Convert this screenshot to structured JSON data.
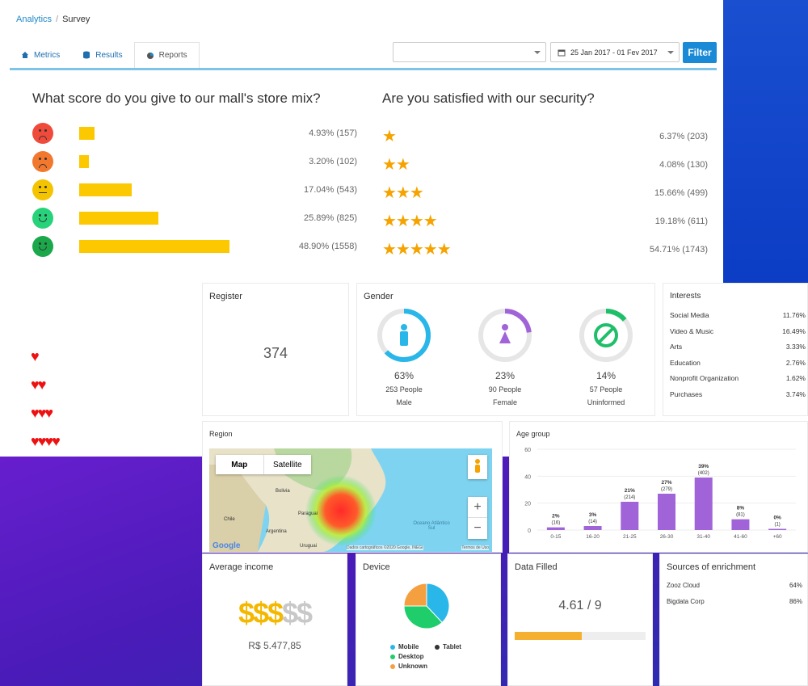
{
  "breadcrumb": {
    "root": "Analytics",
    "sep": "/",
    "current": "Survey"
  },
  "tabs": [
    {
      "label": "Metrics"
    },
    {
      "label": "Results"
    },
    {
      "label": "Reports"
    }
  ],
  "filter": {
    "select_value": "",
    "date_range": "25 Jan 2017 - 01 Fev 2017",
    "button_label": "Filter"
  },
  "q1": {
    "title": "What score do you give to our mall's store mix?",
    "rows": [
      {
        "pct": 4.93,
        "text": "4.93% (157)"
      },
      {
        "pct": 3.2,
        "text": "3.20% (102)"
      },
      {
        "pct": 17.04,
        "text": "17.04% (543)"
      },
      {
        "pct": 25.89,
        "text": "25.89% (825)"
      },
      {
        "pct": 48.9,
        "text": "48.90% (1558)"
      }
    ]
  },
  "q2": {
    "title": "Are you satisfied with our security?",
    "rows": [
      {
        "stars": 1,
        "text": "6.37% (203)"
      },
      {
        "stars": 2,
        "text": "4.08% (130)"
      },
      {
        "stars": 3,
        "text": "15.66% (499)"
      },
      {
        "stars": 4,
        "text": "19.18% (611)"
      },
      {
        "stars": 5,
        "text": "54.71% (1743)"
      }
    ]
  },
  "hearts": [
    1,
    2,
    3,
    4
  ],
  "register": {
    "title": "Register",
    "value": "374"
  },
  "gender": {
    "title": "Gender",
    "items": [
      {
        "pct": "63%",
        "people": "253 People",
        "label": "Male",
        "frac": 0.63,
        "color": "#29b6e8"
      },
      {
        "pct": "23%",
        "people": "90 People",
        "label": "Female",
        "frac": 0.23,
        "color": "#a064d8"
      },
      {
        "pct": "14%",
        "people": "57 People",
        "label": "Uninformed",
        "frac": 0.14,
        "color": "#1fbf6a"
      }
    ]
  },
  "interests": {
    "title": "Interests",
    "items": [
      {
        "label": "Social Media",
        "value": "11.76%"
      },
      {
        "label": "Video & Music",
        "value": "16.49%"
      },
      {
        "label": "Arts",
        "value": "3.33%"
      },
      {
        "label": "Education",
        "value": "2.76%"
      },
      {
        "label": "Nonprofit Organization",
        "value": "1.62%"
      },
      {
        "label": "Purchases",
        "value": "3.74%"
      }
    ]
  },
  "region": {
    "title": "Region",
    "map_tab": "Map",
    "satellite_tab": "Satellite",
    "zoom_in": "+",
    "zoom_out": "−",
    "labels": [
      "Bolivia",
      "Paraguai",
      "Oceano Atlântico Sul",
      "Chile",
      "Argentina",
      "Uruguai"
    ],
    "attribution": "Dados cartográficos ©2020 Google, INEGI",
    "terms": "Termos de Uso",
    "logo": "Google"
  },
  "age": {
    "title": "Age group"
  },
  "chart_data": {
    "type": "bar",
    "categories": [
      "0-15",
      "16-20",
      "21-25",
      "26-30",
      "31-40",
      "41-60",
      "+60"
    ],
    "values": [
      2,
      3,
      21,
      27,
      39,
      8,
      0
    ],
    "labels": [
      "2%",
      "3%",
      "21%",
      "27%",
      "39%",
      "8%",
      "0%"
    ],
    "counts": [
      "(16)",
      "(14)",
      "(214)",
      "(279)",
      "(402)",
      "(81)",
      "(1)"
    ],
    "ylim": [
      0,
      60
    ],
    "yticks": [
      0,
      20,
      40,
      60
    ],
    "color": "#a064d8"
  },
  "income": {
    "title": "Average income",
    "symbols_filled": "$$$",
    "symbols_empty": "$$",
    "value": "R$ 5.477,85"
  },
  "device": {
    "title": "Device",
    "legend": [
      {
        "label": "Mobile",
        "color": "#29b6e8",
        "frac": 0.38
      },
      {
        "label": "Tablet",
        "color": "#333333",
        "frac": 0.0
      },
      {
        "label": "Desktop",
        "color": "#1fce6a",
        "frac": 0.37
      },
      {
        "label": "Unknown",
        "color": "#f5a040",
        "frac": 0.25
      }
    ]
  },
  "datafilled": {
    "title": "Data Filled",
    "value": "4.61 / 9",
    "frac": 0.512
  },
  "sources": {
    "title": "Sources of enrichment",
    "items": [
      {
        "label": "Zooz Cloud",
        "value": "64%"
      },
      {
        "label": "Bigdata Corp",
        "value": "86%"
      }
    ]
  }
}
